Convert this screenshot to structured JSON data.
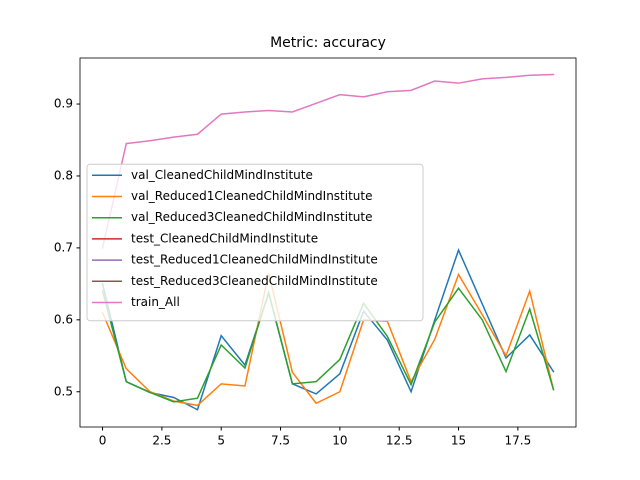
{
  "chart_data": {
    "type": "line",
    "title": "Metric: accuracy",
    "x": [
      0,
      1,
      2,
      3,
      4,
      5,
      6,
      7,
      8,
      9,
      10,
      11,
      12,
      13,
      14,
      15,
      16,
      17,
      18,
      19
    ],
    "xlim": [
      -0.95,
      19.95
    ],
    "xticks": [
      0,
      2.5,
      5,
      7.5,
      10,
      12.5,
      15,
      17.5
    ],
    "ylim": [
      0.451,
      0.964
    ],
    "yticks": [
      0.5,
      0.6,
      0.7,
      0.8,
      0.9
    ],
    "legend": "center left",
    "series": [
      {
        "name": "val_CleanedChildMindInstitute",
        "color": "#1f77b4",
        "values": [
          0.65,
          0.514,
          0.499,
          0.492,
          0.475,
          0.578,
          0.537,
          0.637,
          0.511,
          0.497,
          0.525,
          0.612,
          0.572,
          0.5,
          0.6,
          0.697,
          0.622,
          0.547,
          0.579,
          0.528
        ]
      },
      {
        "name": "val_Reduced1CleanedChildMindInstitute",
        "color": "#ff7f0e",
        "values": [
          0.61,
          0.532,
          0.5,
          0.487,
          0.481,
          0.511,
          0.508,
          0.665,
          0.527,
          0.484,
          0.5,
          0.6,
          0.598,
          0.514,
          0.573,
          0.663,
          0.607,
          0.55,
          0.64,
          0.503
        ]
      },
      {
        "name": "val_Reduced3CleanedChildMindInstitute",
        "color": "#2ca02c",
        "values": [
          0.64,
          0.514,
          0.499,
          0.486,
          0.491,
          0.565,
          0.533,
          0.638,
          0.511,
          0.514,
          0.545,
          0.623,
          0.577,
          0.51,
          0.597,
          0.644,
          0.6,
          0.528,
          0.615,
          0.503
        ]
      },
      {
        "name": "test_CleanedChildMindInstitute",
        "color": "#d62728",
        "values": [
          0.71,
          null,
          null,
          null,
          null,
          null,
          null,
          null,
          null,
          null,
          null,
          null,
          null,
          null,
          null,
          null,
          null,
          null,
          null,
          null
        ]
      },
      {
        "name": "test_Reduced1CleanedChildMindInstitute",
        "color": "#9467bd",
        "values": [
          0.71,
          null,
          null,
          null,
          null,
          null,
          null,
          null,
          null,
          null,
          null,
          null,
          null,
          null,
          null,
          null,
          null,
          null,
          null,
          null
        ]
      },
      {
        "name": "test_Reduced3CleanedChildMindInstitute",
        "color": "#8c564b",
        "values": [
          0.71,
          null,
          null,
          null,
          null,
          null,
          null,
          null,
          null,
          null,
          null,
          null,
          null,
          null,
          null,
          null,
          null,
          null,
          null,
          null
        ]
      },
      {
        "name": "train_All",
        "color": "#e377c2",
        "values": [
          0.7,
          0.845,
          0.849,
          0.854,
          0.858,
          0.886,
          0.889,
          0.891,
          0.889,
          0.901,
          0.913,
          0.91,
          0.917,
          0.919,
          0.932,
          0.929,
          0.935,
          0.937,
          0.94,
          0.941
        ]
      }
    ]
  }
}
